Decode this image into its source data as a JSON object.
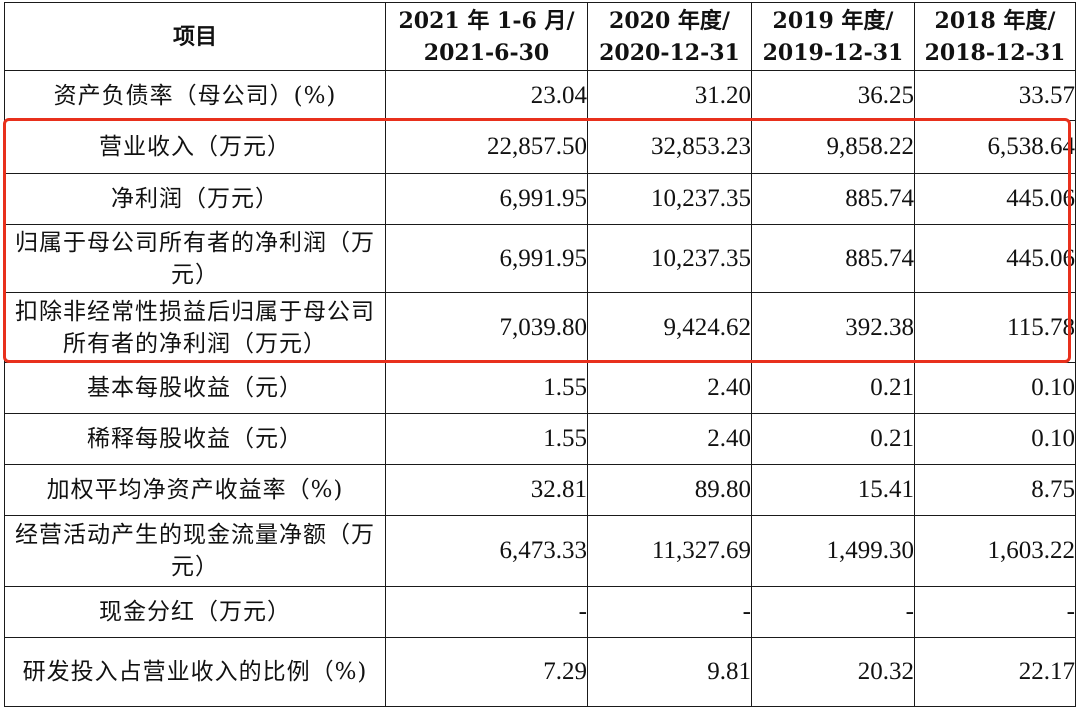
{
  "table": {
    "header": {
      "item": "项目",
      "periods": [
        {
          "line1": "2021 年 1-6 月/",
          "line2": "2021-6-30"
        },
        {
          "line1": "2020 年度/",
          "line2": "2020-12-31"
        },
        {
          "line1": "2019 年度/",
          "line2": "2019-12-31"
        },
        {
          "line1": "2018 年度/",
          "line2": "2018-12-31"
        }
      ]
    },
    "rows": [
      {
        "label": "资产负债率（母公司）(%)",
        "values": [
          "23.04",
          "31.20",
          "36.25",
          "33.57"
        ]
      },
      {
        "label": "营业收入（万元）",
        "values": [
          "22,857.50",
          "32,853.23",
          "9,858.22",
          "6,538.64"
        ]
      },
      {
        "label": "净利润（万元）",
        "values": [
          "6,991.95",
          "10,237.35",
          "885.74",
          "445.06"
        ]
      },
      {
        "label": "归属于母公司所有者的净利润（万元）",
        "values": [
          "6,991.95",
          "10,237.35",
          "885.74",
          "445.06"
        ]
      },
      {
        "label": "扣除非经常性损益后归属于母公司所有者的净利润（万元）",
        "values": [
          "7,039.80",
          "9,424.62",
          "392.38",
          "115.78"
        ]
      },
      {
        "label": "基本每股收益（元）",
        "values": [
          "1.55",
          "2.40",
          "0.21",
          "0.10"
        ]
      },
      {
        "label": "稀释每股收益（元）",
        "values": [
          "1.55",
          "2.40",
          "0.21",
          "0.10"
        ]
      },
      {
        "label": "加权平均净资产收益率（%)",
        "values": [
          "32.81",
          "89.80",
          "15.41",
          "8.75"
        ]
      },
      {
        "label": "经营活动产生的现金流量净额（万元）",
        "values": [
          "6,473.33",
          "11,327.69",
          "1,499.30",
          "1,603.22"
        ]
      },
      {
        "label": "现金分红（万元）",
        "values": [
          "-",
          "-",
          "-",
          "-"
        ]
      },
      {
        "label": "研发投入占营业收入的比例（%)",
        "values": [
          "7.29",
          "9.81",
          "20.32",
          "22.17"
        ]
      }
    ]
  },
  "highlight": {
    "color": "#e8301c"
  }
}
